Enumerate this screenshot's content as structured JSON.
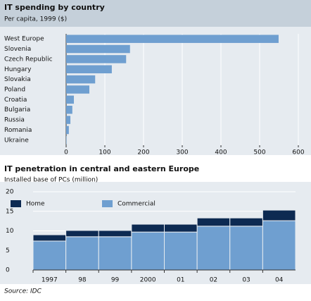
{
  "chart_data": [
    {
      "type": "bar",
      "orientation": "horizontal",
      "title": "IT spending by country",
      "subtitle": "Per capita, 1999 ($)",
      "categories": [
        "West Europe",
        "Slovenia",
        "Czech Republic",
        "Hungary",
        "Slovakia",
        "Poland",
        "Croatia",
        "Bulgaria",
        "Russia",
        "Romania",
        "Ukraine"
      ],
      "values": [
        549,
        165,
        155,
        118,
        75,
        60,
        20,
        16,
        11,
        7,
        1
      ],
      "color": "#6f9fd0",
      "xlim": [
        0,
        600
      ],
      "xticks": [
        0,
        100,
        200,
        300,
        400,
        500,
        600
      ],
      "grid": true
    },
    {
      "type": "bar",
      "stacked": true,
      "title": "IT penetration in central and eastern Europe",
      "subtitle": "Installed base of PCs (million)",
      "categories": [
        "1997",
        "98",
        "99",
        "2000",
        "01",
        "02",
        "03",
        "04"
      ],
      "series": [
        {
          "name": "Commercial",
          "color": "#6f9fd0",
          "values": [
            7.4,
            8.5,
            8.5,
            9.7,
            9.7,
            11.2,
            11.2,
            12.6
          ]
        },
        {
          "name": "Home",
          "color": "#0d2a52",
          "values": [
            1.6,
            1.6,
            1.6,
            2.0,
            2.0,
            2.1,
            2.1,
            2.7
          ]
        }
      ],
      "ylim": [
        0,
        20
      ],
      "yticks": [
        0,
        5,
        10,
        15,
        20
      ],
      "grid": true,
      "legend": "top",
      "source": "Source: IDC"
    }
  ]
}
